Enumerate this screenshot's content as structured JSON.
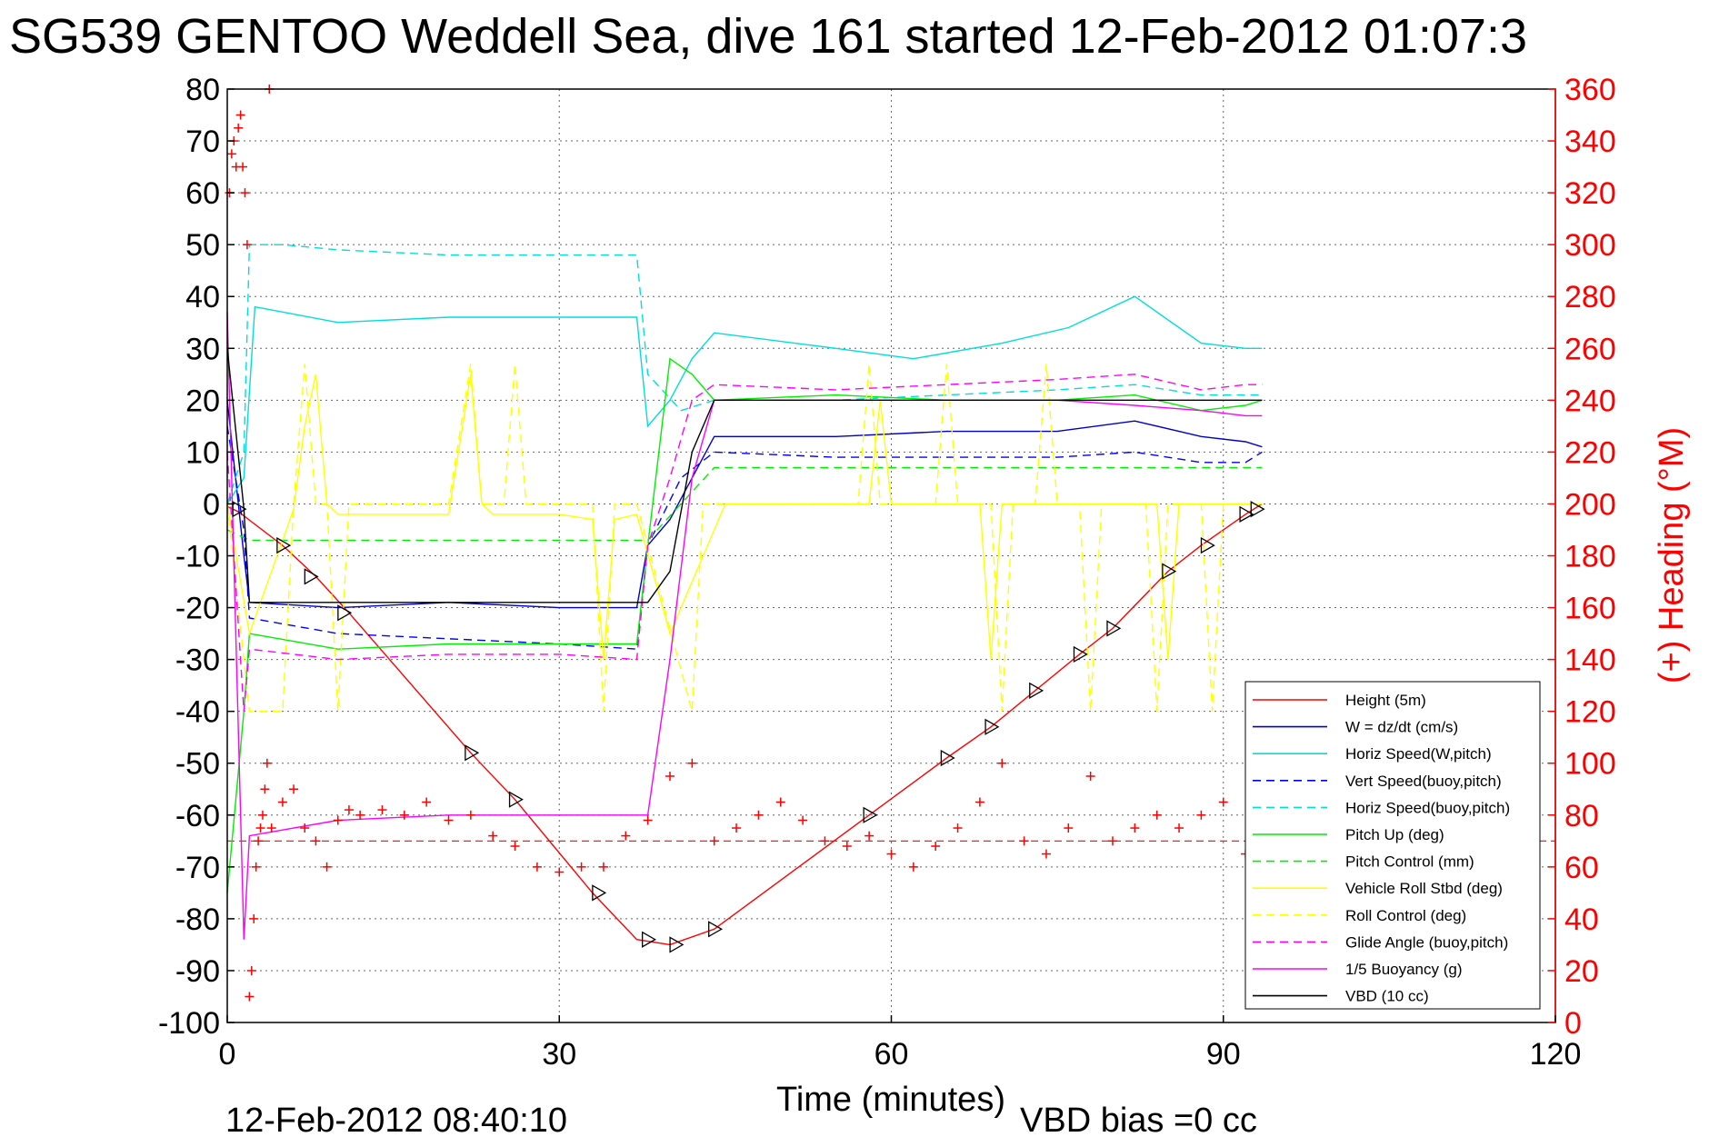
{
  "chart_data": {
    "type": "line",
    "title": "SG539 GENTOO Weddell Sea, dive 161 started 12-Feb-2012 01:07:3",
    "xlabel": "Time (minutes)",
    "ylabel": "",
    "ylabel_right": "(+) Heading (°M)",
    "xlim": [
      0,
      120
    ],
    "ylim": [
      -100,
      80
    ],
    "ylim_right": [
      0,
      360
    ],
    "xticks": [
      "0",
      "30",
      "60",
      "90",
      "120"
    ],
    "yticks": [
      "80",
      "70",
      "60",
      "50",
      "40",
      "30",
      "20",
      "10",
      "0",
      "-10",
      "-20",
      "-30",
      "-40",
      "-50",
      "-60",
      "-70",
      "-80",
      "-90",
      "-100"
    ],
    "yticks_right": [
      "360",
      "340",
      "320",
      "300",
      "280",
      "260",
      "240",
      "220",
      "200",
      "180",
      "160",
      "140",
      "120",
      "100",
      "80",
      "60",
      "40",
      "20",
      "0"
    ],
    "grid": true,
    "legend_position": "bottom-right",
    "footer_left": "12-Feb-2012 08:40:10",
    "footer_right": "VBD bias =0 cc",
    "series": [
      {
        "name": "Height (5m)",
        "color": "#ff0000",
        "dash": "solid",
        "x": [
          0,
          1,
          5,
          8,
          11,
          22,
          26,
          33,
          37,
          40,
          44,
          58,
          65,
          69,
          73,
          77,
          80,
          85,
          88,
          92,
          93.5
        ],
        "y": [
          -0.5,
          -1.5,
          -8,
          -14,
          -21,
          -48,
          -57,
          -75,
          -84,
          -85,
          -82,
          -60,
          -49,
          -43,
          -36,
          -29,
          -24,
          -13,
          -8,
          -2,
          0
        ]
      },
      {
        "name": "W = dz/dt (cm/s)",
        "color": "#0000cc",
        "dash": "solid",
        "x": [
          0,
          1.5,
          2,
          10,
          20,
          30,
          37,
          38,
          40,
          42,
          44,
          55,
          65,
          75,
          82,
          88,
          92,
          93.5
        ],
        "y": [
          20,
          -10,
          -19,
          -20,
          -19,
          -20,
          -20,
          -8,
          -3,
          5,
          13,
          13,
          14,
          14,
          16,
          13,
          12,
          11
        ]
      },
      {
        "name": "Horiz Speed(W,pitch)",
        "color": "#00dddd",
        "dash": "solid",
        "x": [
          0,
          1.5,
          2.5,
          10,
          20,
          30,
          37,
          38,
          40,
          42,
          44,
          55,
          62,
          70,
          76,
          82,
          88,
          92,
          93.5
        ],
        "y": [
          0,
          5,
          38,
          35,
          36,
          36,
          36,
          15,
          20,
          28,
          33,
          30,
          28,
          31,
          34,
          40,
          31,
          30,
          30
        ]
      },
      {
        "name": "Vert Speed(buoy,pitch)",
        "color": "#0000ff",
        "dash": "dashed",
        "x": [
          0,
          1.5,
          2,
          10,
          20,
          30,
          37,
          38,
          41,
          44,
          55,
          65,
          75,
          82,
          88,
          92,
          93.5
        ],
        "y": [
          15,
          -5,
          -22,
          -25,
          -26,
          -27,
          -28,
          -8,
          5,
          10,
          9,
          9,
          9,
          10,
          8,
          8,
          10
        ]
      },
      {
        "name": "Horiz Speed(buoy,pitch)",
        "color": "#00dddd",
        "dash": "dashed",
        "x": [
          0,
          1.5,
          2,
          5,
          10,
          20,
          30,
          37,
          38,
          41,
          44,
          55,
          65,
          75,
          82,
          88,
          92,
          93.5
        ],
        "y": [
          0,
          10,
          50,
          50,
          49,
          48,
          48,
          48,
          25,
          18,
          20,
          20,
          21,
          22,
          23,
          21,
          21,
          21
        ]
      },
      {
        "name": "Pitch Up (deg)",
        "color": "#00ee00",
        "dash": "solid",
        "x": [
          0,
          1.5,
          2,
          10,
          20,
          30,
          37,
          38,
          40,
          42,
          44,
          55,
          65,
          75,
          82,
          88,
          92,
          93.5
        ],
        "y": [
          -75,
          -40,
          -25,
          -28,
          -27,
          -27,
          -27,
          -8,
          28,
          25,
          20,
          21,
          20,
          20,
          21,
          18,
          19,
          20
        ]
      },
      {
        "name": "Pitch Control (mm)",
        "color": "#00ee00",
        "dash": "dashed",
        "x": [
          0,
          2,
          10,
          20,
          30,
          37,
          38,
          44,
          55,
          65,
          75,
          82,
          88,
          92,
          93.5
        ],
        "y": [
          -5,
          -7,
          -7,
          -7,
          -7,
          -7,
          -7,
          7,
          7,
          7,
          7,
          7,
          7,
          7,
          7
        ]
      },
      {
        "name": "Vehicle Roll Stbd (deg)",
        "color": "#ffff00",
        "dash": "solid",
        "x": [
          0,
          2,
          6,
          7,
          8,
          9,
          10,
          20,
          22,
          23,
          24,
          30,
          33,
          34,
          35,
          37,
          40,
          45,
          55,
          58,
          59,
          60,
          68,
          69,
          70,
          80,
          84,
          85,
          86,
          90,
          93.5
        ],
        "y": [
          0,
          -25,
          -1,
          15,
          25,
          0,
          -2,
          -2,
          25,
          0,
          -2,
          -2,
          -3,
          -30,
          -3,
          -2,
          -25,
          0,
          0,
          0,
          20,
          0,
          0,
          -30,
          0,
          0,
          0,
          -30,
          0,
          0,
          0
        ]
      },
      {
        "name": "Roll Control (deg)",
        "color": "#ffff00",
        "dash": "dashed",
        "x": [
          0,
          2,
          5,
          6,
          7,
          8,
          9,
          10,
          11,
          20,
          22,
          23,
          25,
          26,
          27,
          33,
          34,
          35,
          37,
          42,
          43,
          44,
          55,
          57,
          58,
          59,
          64,
          65,
          66,
          69,
          70,
          71,
          73,
          74,
          75,
          77,
          78,
          79,
          83,
          84,
          85,
          88,
          89,
          90,
          93.5
        ],
        "y": [
          0,
          -40,
          -40,
          0,
          27,
          0,
          0,
          -40,
          0,
          0,
          27,
          0,
          0,
          27,
          0,
          0,
          -40,
          0,
          0,
          -40,
          0,
          0,
          0,
          0,
          27,
          0,
          0,
          27,
          0,
          0,
          -40,
          0,
          0,
          27,
          0,
          0,
          -40,
          0,
          0,
          -40,
          0,
          0,
          -40,
          0,
          0
        ]
      },
      {
        "name": "Glide Angle (buoy,pitch)",
        "color": "#ff00ff",
        "dash": "dashed",
        "x": [
          0,
          1.5,
          2,
          10,
          20,
          30,
          37,
          38,
          40,
          42,
          44,
          55,
          65,
          75,
          82,
          88,
          92,
          93.5
        ],
        "y": [
          10,
          -40,
          -28,
          -30,
          -29,
          -29,
          -30,
          -8,
          5,
          20,
          23,
          22,
          23,
          24,
          25,
          22,
          23,
          23
        ]
      },
      {
        "name": "1/5 Buoyancy (g)",
        "color": "#ff00ff",
        "dash": "solid",
        "x": [
          0,
          1.5,
          2,
          10,
          20,
          30,
          37,
          38,
          40,
          42,
          44,
          55,
          65,
          75,
          82,
          88,
          92,
          93.5
        ],
        "y": [
          37,
          -84,
          -64,
          -61,
          -60,
          -60,
          -60,
          -60,
          -30,
          5,
          20,
          20,
          20,
          20,
          19,
          18,
          17,
          17
        ]
      },
      {
        "name": "VBD (10 cc)",
        "color": "#000000",
        "dash": "solid",
        "x": [
          0,
          1.5,
          2,
          10,
          20,
          30,
          37,
          38,
          40,
          42,
          44,
          55,
          65,
          75,
          82,
          88,
          92,
          93.5
        ],
        "y": [
          30,
          -1,
          -19,
          -19,
          -19,
          -19,
          -19,
          -19,
          -13,
          10,
          20,
          20,
          20,
          20,
          20,
          20,
          20,
          20
        ]
      }
    ],
    "heading_series": {
      "axis": "right",
      "color": "#ff0000",
      "marker": "+",
      "x": [
        0.2,
        0.4,
        0.6,
        0.8,
        1.0,
        1.2,
        1.4,
        1.6,
        1.8,
        2.0,
        2.2,
        2.4,
        2.6,
        2.8,
        3.0,
        3.2,
        3.4,
        3.6,
        3.8,
        4,
        5,
        6,
        7,
        8,
        9,
        10,
        11,
        12,
        14,
        16,
        18,
        20,
        22,
        24,
        26,
        28,
        30,
        32,
        34,
        36,
        38,
        40,
        42,
        44,
        46,
        48,
        50,
        52,
        54,
        56,
        58,
        60,
        62,
        64,
        66,
        68,
        70,
        72,
        74,
        76,
        78,
        80,
        82,
        84,
        86,
        88,
        90,
        92,
        93
      ],
      "y": [
        320,
        335,
        340,
        330,
        345,
        350,
        330,
        320,
        300,
        10,
        20,
        40,
        60,
        70,
        75,
        80,
        90,
        100,
        360,
        75,
        85,
        90,
        75,
        70,
        60,
        78,
        82,
        80,
        82,
        80,
        85,
        78,
        80,
        72,
        68,
        60,
        58,
        60,
        60,
        72,
        78,
        95,
        100,
        70,
        75,
        80,
        85,
        78,
        70,
        68,
        72,
        65,
        60,
        68,
        75,
        85,
        100,
        70,
        65,
        75,
        95,
        70,
        75,
        80,
        75,
        80,
        85,
        65,
        70
      ]
    },
    "reference_line": {
      "axis": "right",
      "value": 70,
      "color": "#ff0000",
      "dash": "dashed"
    },
    "markers_right_triangle": {
      "color": "#000000",
      "x": [
        1.0,
        5.0,
        7.5,
        10.5,
        22.0,
        26.0,
        33.5,
        38.0,
        40.5,
        44.0,
        58.0,
        65.0,
        69.0,
        73.0,
        77.0,
        80.0,
        85.0,
        88.5,
        92.0,
        93.0
      ],
      "y": [
        -1,
        -8,
        -14,
        -21,
        -48,
        -57,
        -75,
        -84,
        -85,
        -82,
        -60,
        -49,
        -43,
        -36,
        -29,
        -24,
        -13,
        -8,
        -2,
        -1
      ]
    }
  }
}
